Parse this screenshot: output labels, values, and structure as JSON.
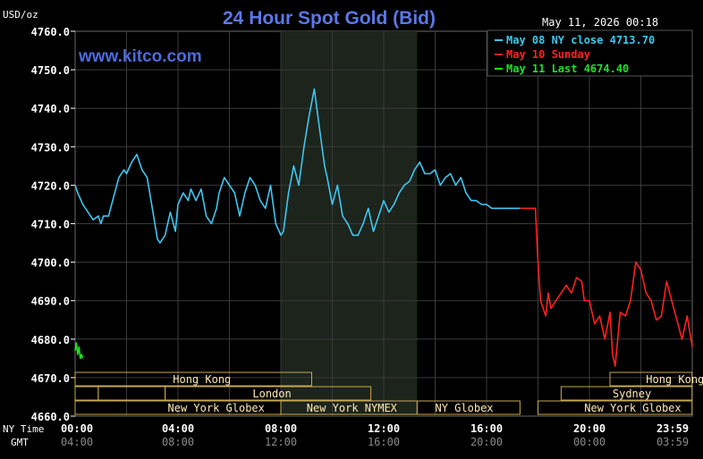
{
  "chart_data": {
    "type": "line",
    "title": "24 Hour Spot Gold (Bid)",
    "unit_label": "USD/oz",
    "timestamp": "May 11, 2026 00:18",
    "watermark": "www.kitco.com",
    "ylim": [
      4660,
      4760
    ],
    "y_ticks": [
      "4760.0",
      "4750.0",
      "4740.0",
      "4730.0",
      "4720.0",
      "4710.0",
      "4700.0",
      "4690.0",
      "4680.0",
      "4670.0",
      "4660.0"
    ],
    "x_row_labels": {
      "ny": "NY Time",
      "gmt": "GMT"
    },
    "x_ticks_ny": [
      "00:00",
      "04:00",
      "08:00",
      "12:00",
      "16:00",
      "20:00",
      "23:59"
    ],
    "x_ticks_gmt": [
      "04:00",
      "08:00",
      "12:00",
      "16:00",
      "20:00",
      "00:00",
      "03:59"
    ],
    "legend": [
      {
        "label": "May 08 NY close 4713.70",
        "color": "#3ec6f0"
      },
      {
        "label": "May 10 Sunday",
        "color": "#ff2020"
      },
      {
        "label": "May 11 Last 4674.40",
        "color": "#22e022"
      }
    ],
    "sessions": [
      {
        "name": "Hong Kong",
        "row": 0,
        "start": 0.0,
        "end": 9.2,
        "label_at": 3.8
      },
      {
        "name": "Hong Kong",
        "row": 0,
        "start": 20.8,
        "end": 23.99,
        "label_at": 22.2
      },
      {
        "name": "",
        "row": 1,
        "start": 0.0,
        "end": 0.9,
        "label_at": null
      },
      {
        "name": "London",
        "row": 1,
        "start": 3.5,
        "end": 11.5,
        "label_at": 6.9
      },
      {
        "name": "Sydney",
        "row": 1,
        "start": 18.9,
        "end": 23.99,
        "label_at": 20.9
      },
      {
        "name": "",
        "row": 1,
        "start": 0.9,
        "end": 3.5,
        "label_at": null
      },
      {
        "name": "New York Globex",
        "row": 2,
        "start": 0.0,
        "end": 8.0,
        "label_at": 3.6
      },
      {
        "name": "New York NYMEX",
        "row": 2,
        "start": 8.0,
        "end": 13.3,
        "label_at": 9.0
      },
      {
        "name": "NY Globex",
        "row": 2,
        "start": 13.3,
        "end": 17.3,
        "label_at": 14.0
      },
      {
        "name": "New York Globex",
        "row": 2,
        "start": 18.0,
        "end": 23.99,
        "label_at": 19.8
      }
    ],
    "nymex_shade": [
      8.0,
      13.3
    ],
    "series": [
      {
        "name": "May 08 NY close 4713.70",
        "color": "#3ec6f0",
        "x": [
          0.0,
          0.1,
          0.3,
          0.5,
          0.7,
          0.9,
          1.0,
          1.1,
          1.3,
          1.5,
          1.7,
          1.9,
          2.0,
          2.2,
          2.4,
          2.6,
          2.8,
          3.0,
          3.2,
          3.3,
          3.5,
          3.7,
          3.9,
          4.0,
          4.2,
          4.4,
          4.5,
          4.7,
          4.9,
          5.1,
          5.3,
          5.5,
          5.6,
          5.8,
          6.0,
          6.2,
          6.4,
          6.6,
          6.8,
          7.0,
          7.2,
          7.4,
          7.6,
          7.8,
          8.0,
          8.1,
          8.3,
          8.5,
          8.7,
          8.9,
          9.1,
          9.3,
          9.5,
          9.7,
          9.8,
          10.0,
          10.2,
          10.4,
          10.6,
          10.8,
          11.0,
          11.2,
          11.4,
          11.6,
          11.8,
          12.0,
          12.2,
          12.4,
          12.6,
          12.8,
          13.0,
          13.2,
          13.4,
          13.6,
          13.8,
          14.0,
          14.2,
          14.4,
          14.6,
          14.8,
          15.0,
          15.2,
          15.4,
          15.6,
          15.8,
          16.0,
          16.2,
          16.4,
          16.6,
          16.8,
          17.0,
          17.3
        ],
        "y": [
          4720,
          4718,
          4715,
          4713,
          4711,
          4712,
          4710,
          4712,
          4712,
          4717,
          4722,
          4724,
          4723,
          4726,
          4728,
          4724,
          4722,
          4714,
          4706,
          4705,
          4707,
          4713,
          4708,
          4715,
          4718,
          4716,
          4719,
          4716,
          4719,
          4712,
          4710,
          4714,
          4718,
          4722,
          4720,
          4718,
          4712,
          4718,
          4722,
          4720,
          4716,
          4714,
          4720,
          4710,
          4707,
          4708,
          4718,
          4725,
          4720,
          4730,
          4738,
          4745,
          4735,
          4725,
          4722,
          4715,
          4720,
          4712,
          4710,
          4707,
          4707,
          4710,
          4714,
          4708,
          4712,
          4716,
          4713,
          4715,
          4718,
          4720,
          4721,
          4724,
          4726,
          4723,
          4723,
          4724,
          4720,
          4722,
          4723,
          4720,
          4722,
          4718,
          4716,
          4716,
          4715,
          4715,
          4714,
          4714,
          4714,
          4714,
          4714,
          4714
        ]
      },
      {
        "name": "May 10 Sunday",
        "color": "#ff2020",
        "x": [
          17.3,
          17.9,
          18.0,
          18.1,
          18.2,
          18.3,
          18.4,
          18.5,
          18.7,
          18.9,
          19.1,
          19.3,
          19.5,
          19.7,
          19.8,
          20.0,
          20.2,
          20.4,
          20.6,
          20.8,
          20.9,
          21.0,
          21.2,
          21.4,
          21.6,
          21.8,
          22.0,
          22.2,
          22.4,
          22.6,
          22.8,
          23.0,
          23.2,
          23.4,
          23.6,
          23.8,
          24.0
        ],
        "y": [
          4714,
          4714,
          4700,
          4690,
          4688,
          4686,
          4692,
          4688,
          4690,
          4692,
          4694,
          4692,
          4696,
          4695,
          4690,
          4690,
          4684,
          4686,
          4680,
          4687,
          4676,
          4673,
          4687,
          4686,
          4690,
          4700,
          4698,
          4692,
          4690,
          4685,
          4686,
          4695,
          4690,
          4685,
          4680,
          4686,
          4678
        ]
      },
      {
        "name": "May 11 Last 4674.40",
        "color": "#22e022",
        "x": [
          0.0,
          0.05,
          0.1,
          0.15,
          0.2,
          0.25,
          0.3
        ],
        "y": [
          4677,
          4679,
          4676,
          4678,
          4675,
          4676,
          4675
        ]
      }
    ]
  }
}
